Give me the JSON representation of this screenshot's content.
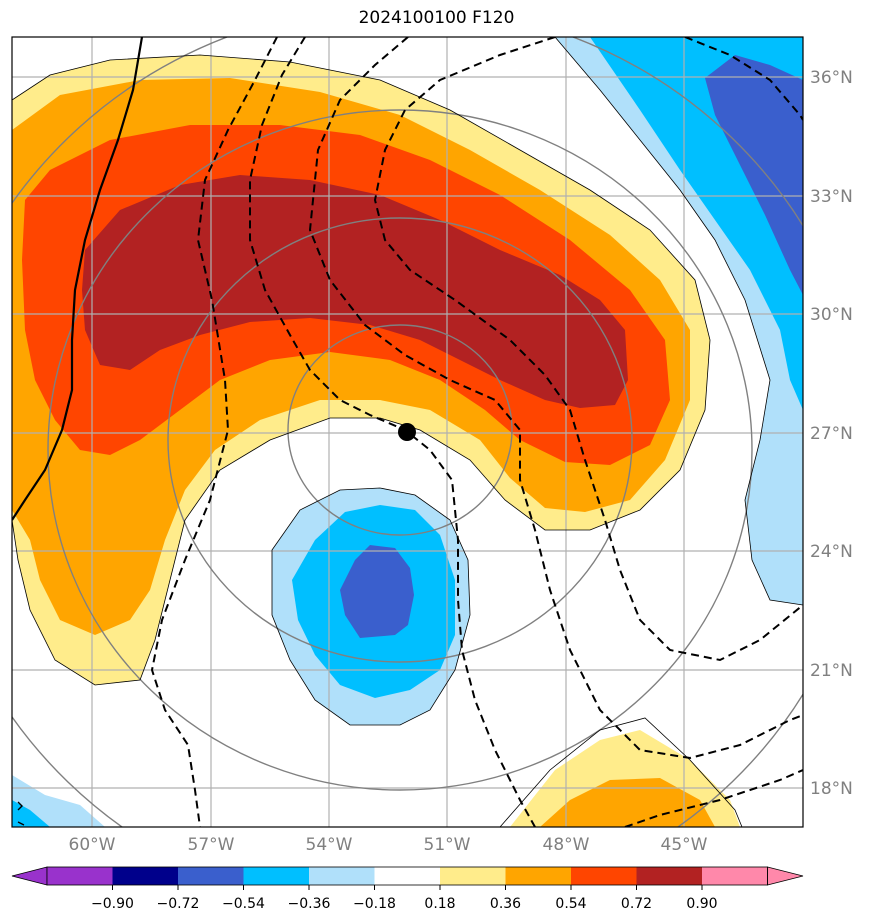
{
  "title": "2024100100 F120",
  "map": {
    "longitude_ticks": [
      "60°W",
      "57°W",
      "54°W",
      "51°W",
      "48°W",
      "45°W"
    ],
    "latitude_ticks": [
      "36°N",
      "33°N",
      "30°N",
      "27°N",
      "24°N",
      "21°N",
      "18°N"
    ],
    "lon_range_deg": [
      -62,
      -42
    ],
    "lat_range_deg": [
      17,
      37
    ],
    "gridlines": true,
    "storm_center": {
      "lon": -52.0,
      "lat": 27.0,
      "marker": "filled-circle"
    }
  },
  "colorbar": {
    "ticks": [
      "−0.90",
      "−0.72",
      "−0.54",
      "−0.36",
      "−0.18",
      "0.18",
      "0.36",
      "0.54",
      "0.72",
      "0.90"
    ],
    "colors": [
      "#9932cc",
      "#00008b",
      "#3a5fcd",
      "#00bfff",
      "#b0e0fa",
      "#ffffff",
      "#ffec8b",
      "#ffa500",
      "#ff4500",
      "#b22222",
      "#ff88aa"
    ],
    "extend": "both"
  },
  "colors": {
    "gridline": "#b0b0b0",
    "contour_gray": "#808080",
    "contour_black": "#000000"
  }
}
